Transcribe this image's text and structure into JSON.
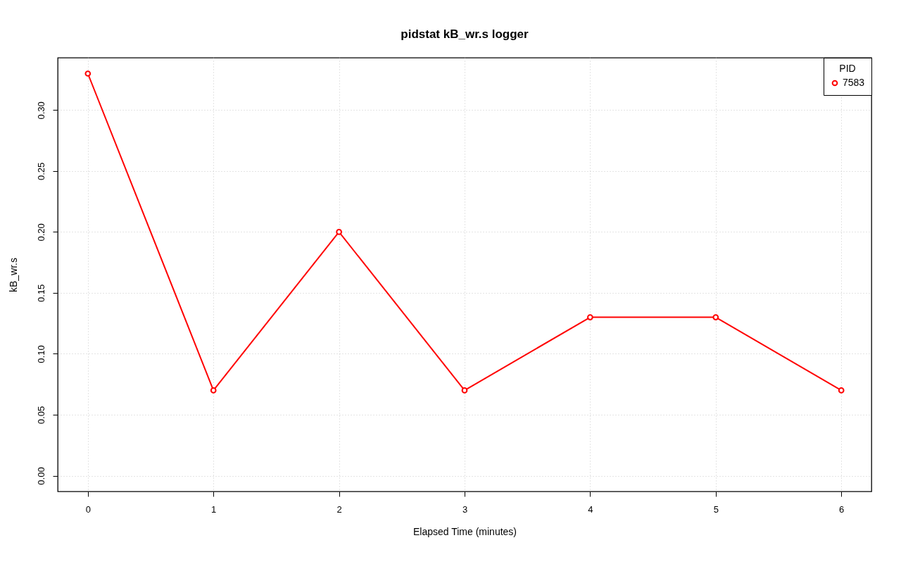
{
  "chart_data": {
    "type": "line",
    "title": "pidstat kB_wr.s logger",
    "xlabel": "Elapsed Time (minutes)",
    "ylabel": "kB_wr.s",
    "legend_title": "PID",
    "x": [
      0,
      1,
      2,
      3,
      4,
      5,
      6
    ],
    "series": [
      {
        "name": "7583",
        "color": "#ff0000",
        "values": [
          0.33,
          0.07,
          0.2,
          0.07,
          0.13,
          0.13,
          0.07
        ]
      }
    ],
    "xlim": [
      -0.24,
      6.24
    ],
    "ylim": [
      -0.013,
      0.343
    ],
    "xticks": [
      0,
      1,
      2,
      3,
      4,
      5,
      6
    ],
    "yticks": [
      {
        "value": 0,
        "label": "0.00"
      },
      {
        "value": 0.05,
        "label": "0.05"
      },
      {
        "value": 0.1,
        "label": "0.10"
      },
      {
        "value": 0.15,
        "label": "0.15"
      },
      {
        "value": 0.2,
        "label": "0.20"
      },
      {
        "value": 0.25,
        "label": "0.25"
      },
      {
        "value": 0.3,
        "label": "0.30"
      }
    ],
    "grid": true,
    "legend": "top right",
    "marker": "circle",
    "line_style": "solid"
  }
}
